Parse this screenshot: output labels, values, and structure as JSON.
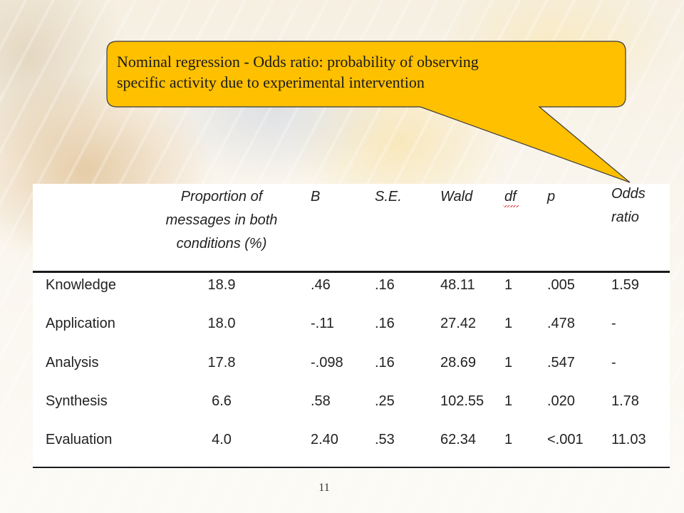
{
  "callout": {
    "text_line1": "Nominal regression - Odds ratio: probability of observing",
    "text_line2": "specific activity due to experimental intervention",
    "fill_color": "#ffc000",
    "border_color": "#3a3a3a"
  },
  "table": {
    "headers": {
      "proportion_line1": "Proportion of",
      "proportion_line2": "messages in both",
      "proportion_line3": "conditions (%)",
      "b": "B",
      "se": "S.E.",
      "wald": "Wald",
      "df": "df",
      "p": "p",
      "odds_line1": "Odds",
      "odds_line2": "ratio"
    },
    "rows": [
      {
        "label": "Knowledge",
        "proportion": "18.9",
        "b": ".46",
        "se": ".16",
        "wald": "48.11",
        "df": "1",
        "p": ".005",
        "odds": "1.59"
      },
      {
        "label": "Application",
        "proportion": "18.0",
        "b": "-.11",
        "se": ".16",
        "wald": "27.42",
        "df": "1",
        "p": ".478",
        "odds": "-"
      },
      {
        "label": "Analysis",
        "proportion": "17.8",
        "b": "-.098",
        "se": ".16",
        "wald": "28.69",
        "df": "1",
        "p": ".547",
        "odds": "-"
      },
      {
        "label": "Synthesis",
        "proportion": "6.6",
        "b": ".58",
        "se": ".25",
        "wald": "102.55",
        "df": "1",
        "p": ".020",
        "odds": "1.78"
      },
      {
        "label": "Evaluation",
        "proportion": "4.0",
        "b": "2.40",
        "se": ".53",
        "wald": "62.34",
        "df": "1",
        "p": "<.001",
        "odds": "11.03"
      }
    ]
  },
  "page_number": "11"
}
